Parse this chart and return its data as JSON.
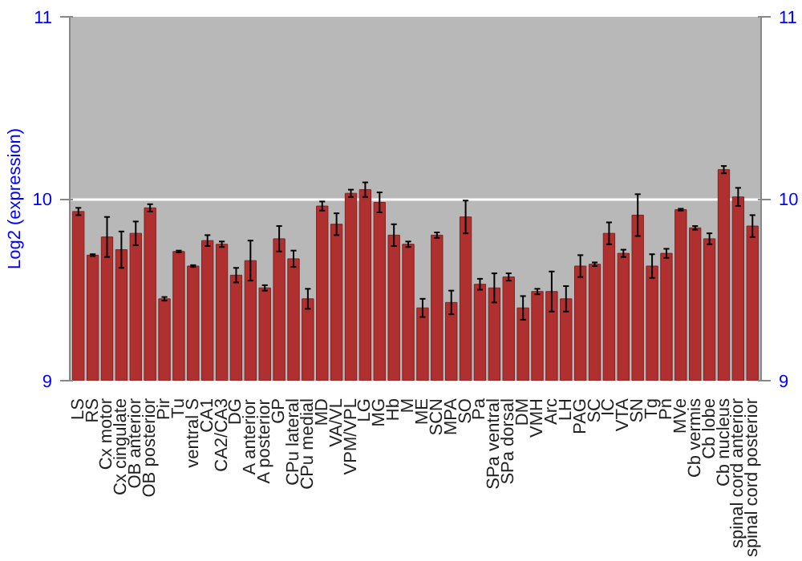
{
  "chart_data": {
    "type": "bar",
    "ylabel": "Log2 (expression)",
    "categories": [
      "LS",
      "RS",
      "Cx motor",
      "Cx cingulate",
      "OB anterior",
      "OB posterior",
      "Pir",
      "Tu",
      "ventral S",
      "CA1",
      "CA2/CA3",
      "DG",
      "A anterior",
      "A posterior",
      "GP",
      "CPu lateral",
      "CPu medial",
      "MD",
      "VA/VL",
      "VPM/VPL",
      "LG",
      "MG",
      "Hb",
      "M",
      "ME",
      "SCN",
      "MPA",
      "SO",
      "Pa",
      "SPa ventral",
      "SPa dorsal",
      "DM",
      "VMH",
      "Arc",
      "LH",
      "PAG",
      "SC",
      "IC",
      "VTA",
      "SN",
      "Tg",
      "Pn",
      "MVe",
      "Cb vermis",
      "Cb lobe",
      "Cb nucleus",
      "spinal cord anterior",
      "spinal cord posterior"
    ],
    "values": [
      9.93,
      9.69,
      9.79,
      9.72,
      9.81,
      9.95,
      9.45,
      9.71,
      9.63,
      9.77,
      9.75,
      9.58,
      9.66,
      9.51,
      9.78,
      9.67,
      9.45,
      9.96,
      9.86,
      10.03,
      10.05,
      9.98,
      9.8,
      9.75,
      9.4,
      9.8,
      9.43,
      9.9,
      9.53,
      9.51,
      9.57,
      9.4,
      9.49,
      9.49,
      9.45,
      9.63,
      9.64,
      9.81,
      9.7,
      9.91,
      9.63,
      9.7,
      9.94,
      9.84,
      9.78,
      10.16,
      10.01,
      9.85
    ],
    "errors": [
      0.02,
      0.005,
      0.11,
      0.1,
      0.065,
      0.02,
      0.01,
      0.005,
      0.005,
      0.03,
      0.015,
      0.04,
      0.11,
      0.015,
      0.07,
      0.045,
      0.055,
      0.025,
      0.06,
      0.02,
      0.04,
      0.055,
      0.06,
      0.015,
      0.05,
      0.015,
      0.065,
      0.09,
      0.03,
      0.08,
      0.02,
      0.065,
      0.015,
      0.11,
      0.07,
      0.06,
      0.01,
      0.06,
      0.02,
      0.115,
      0.065,
      0.025,
      0.005,
      0.01,
      0.03,
      0.02,
      0.05,
      0.06
    ],
    "color": "#b03030",
    "ylim": [
      9,
      11
    ],
    "yticks": [
      9,
      10,
      11
    ],
    "y2lim": [
      9,
      11
    ],
    "y2ticks": [
      9,
      10,
      11
    ],
    "grid": "y"
  }
}
